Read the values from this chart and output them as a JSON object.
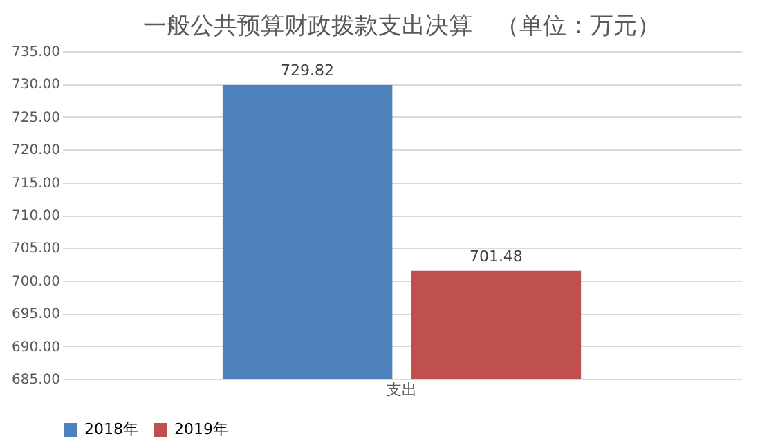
{
  "chart_data": {
    "type": "bar",
    "title": "一般公共预算财政拨款支出决算　（单位：万元）",
    "categories": [
      "支出"
    ],
    "series": [
      {
        "name": "2018年",
        "color": "#4f81bd",
        "values": [
          729.82
        ]
      },
      {
        "name": "2019年",
        "color": "#c0504d",
        "values": [
          701.48
        ]
      }
    ],
    "ylim": [
      685,
      735
    ],
    "yticks": [
      {
        "value": 685,
        "label": "685.00"
      },
      {
        "value": 690,
        "label": "690.00"
      },
      {
        "value": 695,
        "label": "695.00"
      },
      {
        "value": 700,
        "label": "700.00"
      },
      {
        "value": 705,
        "label": "705.00"
      },
      {
        "value": 710,
        "label": "710.00"
      },
      {
        "value": 715,
        "label": "715.00"
      },
      {
        "value": 720,
        "label": "720.00"
      },
      {
        "value": 725,
        "label": "725.00"
      },
      {
        "value": 730,
        "label": "730.00"
      },
      {
        "value": 735,
        "label": "735.00"
      }
    ],
    "grid": "y",
    "legend": "bottom",
    "data_labels": true
  }
}
